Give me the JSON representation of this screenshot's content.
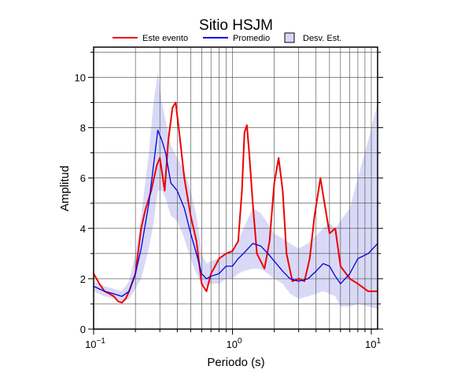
{
  "chart_data": {
    "type": "line",
    "title": "Sitio HSJM",
    "xlabel": "Periodo (s)",
    "ylabel": "Amplitud",
    "xscale": "log",
    "xlim": [
      0.1,
      11.1
    ],
    "ylim": [
      0,
      11.2
    ],
    "xticks": [
      {
        "value": 0.1,
        "label": "10",
        "exponent": "−1"
      },
      {
        "value": 1,
        "label": "10",
        "exponent": "0"
      },
      {
        "value": 10,
        "label": "10",
        "exponent": "1"
      }
    ],
    "minor_xticks": [
      0.2,
      0.3,
      0.4,
      0.5,
      0.6,
      0.7,
      0.8,
      0.9,
      2,
      3,
      4,
      5,
      6,
      7,
      8,
      9
    ],
    "yticks": [
      0,
      2,
      4,
      6,
      8,
      10
    ],
    "minor_yticks": [
      1,
      3,
      5,
      7,
      9,
      11
    ],
    "grid": true,
    "band": {
      "name": "Desv. Est.",
      "color": "#d9d9f7",
      "x": [
        0.1,
        0.12,
        0.14,
        0.16,
        0.18,
        0.2,
        0.22,
        0.25,
        0.27,
        0.29,
        0.31,
        0.33,
        0.36,
        0.4,
        0.45,
        0.5,
        0.55,
        0.6,
        0.65,
        0.7,
        0.8,
        0.9,
        1.0,
        1.1,
        1.2,
        1.4,
        1.6,
        1.8,
        2.0,
        2.3,
        2.6,
        3.0,
        3.5,
        4.0,
        4.5,
        5.0,
        5.5,
        6.0,
        7.0,
        8.0,
        9.5,
        11.1
      ],
      "lower": [
        1.5,
        1.3,
        1.2,
        1.1,
        1.2,
        1.6,
        2.0,
        3.2,
        4.2,
        5.5,
        5.5,
        5.2,
        4.5,
        4.3,
        3.6,
        2.8,
        2.2,
        1.8,
        1.7,
        1.8,
        1.8,
        2.0,
        2.0,
        2.2,
        2.3,
        2.4,
        2.4,
        2.2,
        2.0,
        1.8,
        1.4,
        1.2,
        1.3,
        1.4,
        1.5,
        1.4,
        1.3,
        0.9,
        0.9,
        1.0,
        0.9,
        0.8
      ],
      "upper": [
        1.9,
        1.7,
        1.6,
        1.5,
        1.9,
        3.0,
        4.5,
        7.0,
        9.0,
        10.2,
        9.0,
        8.3,
        7.3,
        6.8,
        6.3,
        5.5,
        4.5,
        3.0,
        2.6,
        2.7,
        2.8,
        3.0,
        3.1,
        3.5,
        4.0,
        4.8,
        4.6,
        4.2,
        3.8,
        3.6,
        3.4,
        3.2,
        3.4,
        3.7,
        4.0,
        4.2,
        4.0,
        4.3,
        4.8,
        6.0,
        7.5,
        9.0
      ]
    },
    "series": [
      {
        "name": "Este evento",
        "color": "#ee0000",
        "x": [
          0.1,
          0.11,
          0.12,
          0.13,
          0.14,
          0.15,
          0.16,
          0.17,
          0.18,
          0.2,
          0.22,
          0.235,
          0.26,
          0.285,
          0.3,
          0.325,
          0.345,
          0.37,
          0.39,
          0.42,
          0.45,
          0.5,
          0.55,
          0.6,
          0.65,
          0.7,
          0.75,
          0.8,
          0.9,
          1.0,
          1.1,
          1.17,
          1.22,
          1.27,
          1.32,
          1.4,
          1.5,
          1.7,
          1.85,
          2.0,
          2.15,
          2.3,
          2.45,
          2.7,
          3.0,
          3.3,
          3.6,
          3.9,
          4.3,
          4.6,
          5.0,
          5.5,
          6.0,
          7.0,
          8.0,
          9.5,
          11.1
        ],
        "values": [
          2.2,
          1.8,
          1.5,
          1.4,
          1.3,
          1.1,
          1.05,
          1.2,
          1.5,
          2.2,
          4.0,
          4.7,
          5.5,
          6.5,
          6.8,
          5.5,
          7.5,
          8.8,
          9.0,
          7.5,
          6.0,
          4.5,
          3.5,
          1.8,
          1.5,
          2.2,
          2.5,
          2.8,
          3.0,
          3.1,
          3.5,
          5.5,
          7.8,
          8.1,
          7.0,
          5.0,
          3.0,
          2.4,
          3.5,
          5.8,
          6.8,
          5.5,
          3.0,
          1.9,
          2.0,
          1.9,
          2.8,
          4.5,
          6.0,
          5.0,
          3.8,
          4.0,
          2.5,
          2.0,
          1.8,
          1.5,
          1.5
        ]
      },
      {
        "name": "Promedio",
        "color": "#0000dd",
        "x": [
          0.1,
          0.12,
          0.14,
          0.16,
          0.18,
          0.2,
          0.22,
          0.25,
          0.27,
          0.29,
          0.31,
          0.33,
          0.36,
          0.4,
          0.45,
          0.5,
          0.55,
          0.6,
          0.65,
          0.7,
          0.8,
          0.9,
          1.0,
          1.1,
          1.2,
          1.4,
          1.6,
          1.8,
          2.0,
          2.3,
          2.6,
          3.0,
          3.5,
          4.0,
          4.5,
          5.0,
          5.5,
          6.0,
          7.0,
          8.0,
          9.5,
          11.1
        ],
        "values": [
          1.7,
          1.5,
          1.4,
          1.3,
          1.5,
          2.2,
          3.2,
          5.0,
          6.5,
          7.9,
          7.5,
          7.0,
          5.8,
          5.5,
          4.8,
          3.8,
          3.0,
          2.2,
          2.0,
          2.1,
          2.2,
          2.5,
          2.5,
          2.8,
          3.0,
          3.4,
          3.3,
          3.0,
          2.7,
          2.3,
          2.0,
          1.9,
          2.0,
          2.3,
          2.6,
          2.5,
          2.1,
          1.8,
          2.2,
          2.8,
          3.0,
          3.4
        ]
      }
    ]
  }
}
